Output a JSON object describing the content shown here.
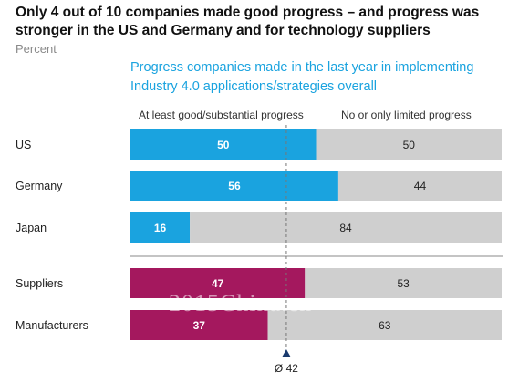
{
  "header": {
    "title": "Only 4 out of 10 companies made good progress – and progress was stronger in the US and Germany and for technology suppliers",
    "unit": "Percent",
    "subtitle": "Progress companies made in the last year in implementing Industry 4.0 applications/strategies overall"
  },
  "legend": {
    "positive_label": "At least good/substantial progress",
    "negative_label": "No or only limited progress"
  },
  "colors": {
    "country_positive": "#1aa3df",
    "type_positive": "#a4185e",
    "negative": "#cfcfcf",
    "reference": "#1a3a6e"
  },
  "watermark": "2015China.cn",
  "chart_data": {
    "type": "bar",
    "orientation": "horizontal",
    "stacked": true,
    "categories": [
      "US",
      "Germany",
      "Japan",
      "Suppliers",
      "Manufacturers"
    ],
    "groups": [
      {
        "categories": [
          "US",
          "Germany",
          "Japan"
        ]
      },
      {
        "categories": [
          "Suppliers",
          "Manufacturers"
        ]
      }
    ],
    "series": [
      {
        "name": "At least good/substantial progress",
        "values": [
          50,
          56,
          16,
          47,
          37
        ]
      },
      {
        "name": "No or only limited progress",
        "values": [
          50,
          44,
          84,
          53,
          63
        ]
      }
    ],
    "xlim": [
      0,
      100
    ],
    "reference_line": {
      "value": 42,
      "label": "Ø 42"
    }
  }
}
